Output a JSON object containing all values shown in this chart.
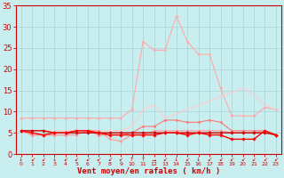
{
  "title": "",
  "xlabel": "Vent moyen/en rafales ( km/h )",
  "ylabel": "",
  "background_color": "#c8eef0",
  "grid_color": "#b0d8d8",
  "xlim": [
    -0.5,
    23.5
  ],
  "ylim": [
    0,
    35
  ],
  "yticks": [
    0,
    5,
    10,
    15,
    20,
    25,
    30,
    35
  ],
  "xticks": [
    0,
    1,
    2,
    3,
    4,
    5,
    6,
    7,
    8,
    9,
    10,
    11,
    12,
    13,
    14,
    15,
    16,
    17,
    18,
    19,
    20,
    21,
    22,
    23
  ],
  "series": [
    {
      "name": "rafales_high",
      "color": "#ffaaaa",
      "linewidth": 0.8,
      "marker": "D",
      "markersize": 1.5,
      "y": [
        8.5,
        8.5,
        8.5,
        8.5,
        8.5,
        8.5,
        8.5,
        8.5,
        8.5,
        8.5,
        10.5,
        26.5,
        24.5,
        24.5,
        32.5,
        26.5,
        23.5,
        23.5,
        15.5,
        9.0,
        9.0,
        9.0,
        11.0,
        10.5
      ]
    },
    {
      "name": "moyen_high",
      "color": "#ffcccc",
      "linewidth": 0.8,
      "marker": null,
      "markersize": 0,
      "y": [
        5.5,
        5.5,
        5.5,
        5.5,
        5.5,
        5.5,
        5.5,
        5.5,
        5.5,
        5.5,
        6.5,
        10.5,
        11.5,
        8.5,
        9.5,
        10.5,
        11.5,
        12.5,
        13.5,
        14.5,
        15.5,
        14.0,
        11.5,
        10.5
      ]
    },
    {
      "name": "rafales_mid",
      "color": "#ff7777",
      "linewidth": 0.8,
      "marker": "D",
      "markersize": 1.5,
      "y": [
        5.5,
        4.5,
        4.5,
        4.5,
        4.5,
        5.5,
        5.5,
        4.5,
        4.5,
        4.5,
        5.0,
        6.5,
        6.5,
        8.0,
        8.0,
        7.5,
        7.5,
        8.0,
        7.5,
        5.5,
        5.5,
        5.5,
        5.5,
        4.5
      ]
    },
    {
      "name": "moyen_mid",
      "color": "#ff9999",
      "linewidth": 0.8,
      "marker": "D",
      "markersize": 1.5,
      "y": [
        5.5,
        4.5,
        4.5,
        4.5,
        4.5,
        4.5,
        5.5,
        5.5,
        3.5,
        3.0,
        4.5,
        4.5,
        5.5,
        5.5,
        5.5,
        5.5,
        5.5,
        5.5,
        5.5,
        5.0,
        5.0,
        5.0,
        5.5,
        4.5
      ]
    },
    {
      "name": "moyen_low",
      "color": "#cc0000",
      "linewidth": 1.0,
      "marker": "D",
      "markersize": 1.8,
      "y": [
        5.5,
        5.5,
        5.5,
        5.0,
        5.0,
        5.0,
        5.0,
        5.0,
        5.0,
        5.0,
        5.0,
        5.0,
        5.0,
        5.0,
        5.0,
        5.0,
        5.0,
        5.0,
        5.0,
        5.0,
        5.0,
        5.0,
        5.0,
        4.5
      ]
    },
    {
      "name": "rafales_low",
      "color": "#ff0000",
      "linewidth": 1.0,
      "marker": "D",
      "markersize": 1.8,
      "y": [
        5.5,
        5.0,
        4.5,
        5.0,
        5.0,
        5.5,
        5.5,
        5.0,
        4.5,
        4.5,
        4.5,
        4.5,
        4.5,
        5.0,
        5.0,
        4.5,
        5.0,
        4.5,
        4.5,
        3.5,
        3.5,
        3.5,
        5.5,
        4.5
      ]
    }
  ],
  "arrow_symbols": [
    "↓",
    "↙",
    "↙",
    "↓",
    "↙",
    "↙",
    "↙",
    "↙",
    "↙",
    "↙",
    "↑",
    "↑",
    "→",
    "↙",
    "↓",
    "↙",
    "↓",
    "↙",
    "↙",
    "↙",
    "↙",
    "↙",
    "↙",
    "↙"
  ],
  "tick_color": "#cc0000",
  "axis_color": "#cc0000",
  "label_color": "#cc0000"
}
